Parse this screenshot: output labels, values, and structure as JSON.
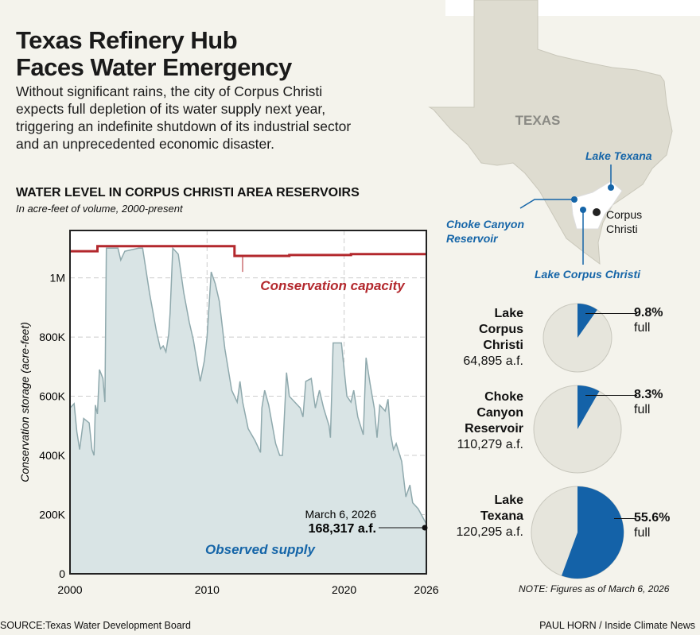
{
  "header": {
    "title_line1": "Texas Refinery Hub",
    "title_line2": "Faces Water Emergency",
    "description": "Without significant rains, the city of Corpus Christi expects full depletion of its water supply next year, triggering an indefinite shutdown of its industrial sector and an unprecedented economic disaster."
  },
  "chart_data": {
    "type": "area",
    "title": "WATER LEVEL IN CORPUS CHRISTI AREA RESERVOIRS",
    "subtitle": "In acre-feet of volume, 2000-present",
    "ylabel": "Conservation storage (acre-feet)",
    "xlabel": "",
    "xlim": [
      2000,
      2026
    ],
    "ylim": [
      0,
      1160000
    ],
    "grid": true,
    "x_ticks": [
      "2000",
      "2010",
      "2020",
      "2026"
    ],
    "y_ticks": [
      "0",
      "200K",
      "400K",
      "600K",
      "800K",
      "1M"
    ],
    "series": [
      {
        "name": "Observed supply",
        "color": "#8fa9ad",
        "fill": "#d9e4e5",
        "points": [
          [
            2000.0,
            560000
          ],
          [
            2000.3,
            575000
          ],
          [
            2000.5,
            480000
          ],
          [
            2000.7,
            420000
          ],
          [
            2001.0,
            525000
          ],
          [
            2001.4,
            510000
          ],
          [
            2001.6,
            420000
          ],
          [
            2001.75,
            400000
          ],
          [
            2001.85,
            570000
          ],
          [
            2002.0,
            540000
          ],
          [
            2002.15,
            690000
          ],
          [
            2002.4,
            660000
          ],
          [
            2002.55,
            580000
          ],
          [
            2002.65,
            1100000
          ],
          [
            2003.5,
            1100000
          ],
          [
            2003.7,
            1060000
          ],
          [
            2004.0,
            1090000
          ],
          [
            2005.0,
            1100000
          ],
          [
            2005.3,
            1100000
          ],
          [
            2005.8,
            950000
          ],
          [
            2006.3,
            820000
          ],
          [
            2006.6,
            760000
          ],
          [
            2006.8,
            770000
          ],
          [
            2007.0,
            750000
          ],
          [
            2007.2,
            810000
          ],
          [
            2007.3,
            880000
          ],
          [
            2007.5,
            1100000
          ],
          [
            2007.9,
            1080000
          ],
          [
            2008.3,
            950000
          ],
          [
            2008.7,
            850000
          ],
          [
            2009.0,
            790000
          ],
          [
            2009.5,
            650000
          ],
          [
            2009.8,
            720000
          ],
          [
            2010.0,
            800000
          ],
          [
            2010.3,
            1020000
          ],
          [
            2010.6,
            980000
          ],
          [
            2010.9,
            920000
          ],
          [
            2011.3,
            760000
          ],
          [
            2011.8,
            620000
          ],
          [
            2012.2,
            580000
          ],
          [
            2012.4,
            650000
          ],
          [
            2012.6,
            580000
          ],
          [
            2013.0,
            490000
          ],
          [
            2013.5,
            450000
          ],
          [
            2013.9,
            410000
          ],
          [
            2014.0,
            560000
          ],
          [
            2014.2,
            620000
          ],
          [
            2014.5,
            570000
          ],
          [
            2015.0,
            440000
          ],
          [
            2015.3,
            400000
          ],
          [
            2015.5,
            400000
          ],
          [
            2015.8,
            680000
          ],
          [
            2016.0,
            600000
          ],
          [
            2016.8,
            560000
          ],
          [
            2017.0,
            530000
          ],
          [
            2017.2,
            650000
          ],
          [
            2017.6,
            660000
          ],
          [
            2017.9,
            560000
          ],
          [
            2018.2,
            620000
          ],
          [
            2018.5,
            560000
          ],
          [
            2018.9,
            500000
          ],
          [
            2019.0,
            460000
          ],
          [
            2019.2,
            780000
          ],
          [
            2019.8,
            780000
          ],
          [
            2020.2,
            600000
          ],
          [
            2020.5,
            580000
          ],
          [
            2020.7,
            620000
          ],
          [
            2021.0,
            530000
          ],
          [
            2021.4,
            470000
          ],
          [
            2021.6,
            730000
          ],
          [
            2021.9,
            640000
          ],
          [
            2022.2,
            560000
          ],
          [
            2022.4,
            460000
          ],
          [
            2022.6,
            570000
          ],
          [
            2023.0,
            550000
          ],
          [
            2023.2,
            590000
          ],
          [
            2023.4,
            470000
          ],
          [
            2023.6,
            420000
          ],
          [
            2023.8,
            440000
          ],
          [
            2024.2,
            380000
          ],
          [
            2024.5,
            260000
          ],
          [
            2024.8,
            300000
          ],
          [
            2025.0,
            240000
          ],
          [
            2025.4,
            220000
          ],
          [
            2026.0,
            168317
          ]
        ]
      },
      {
        "name": "Conservation capacity",
        "color": "#b3282d",
        "points": [
          [
            2000,
            1090000
          ],
          [
            2002,
            1090000
          ],
          [
            2002,
            1107000
          ],
          [
            2012,
            1107000
          ],
          [
            2012,
            1074000
          ],
          [
            2016,
            1074000
          ],
          [
            2016,
            1077000
          ],
          [
            2020.5,
            1077000
          ],
          [
            2020.5,
            1080000
          ],
          [
            2026,
            1080000
          ]
        ]
      }
    ],
    "annotation": {
      "date": "March 6, 2026",
      "value": "168,317 a.f."
    }
  },
  "map": {
    "state_label": "TEXAS",
    "city": "Corpus Christi",
    "markers": [
      "Lake Texana",
      "Choke Canyon Reservoir",
      "Lake Corpus Christi"
    ],
    "marker_color": "#1565a8"
  },
  "reservoirs": [
    {
      "name_lines": [
        "Lake",
        "Corpus",
        "Christi"
      ],
      "volume": "64,895 a.f.",
      "pct": "9.8%",
      "pct_value": 9.8,
      "full_label": "full"
    },
    {
      "name_lines": [
        "Choke",
        "Canyon",
        "Reservoir"
      ],
      "volume": "110,279 a.f.",
      "pct": "8.3%",
      "pct_value": 8.3,
      "full_label": "full"
    },
    {
      "name_lines": [
        "Lake",
        "Texana"
      ],
      "volume": "120,295 a.f.",
      "pct": "55.6%",
      "pct_value": 55.6,
      "full_label": "full"
    }
  ],
  "colors": {
    "pie_fill": "#1462a8",
    "pie_bg": "#e6e5dc",
    "accent_blue": "#1565a8",
    "capacity_red": "#b3282d"
  },
  "footer": {
    "note": "NOTE: Figures as of March 6, 2026",
    "source": "SOURCE:Texas Water Development Board",
    "credit": "PAUL HORN / Inside Climate News"
  }
}
